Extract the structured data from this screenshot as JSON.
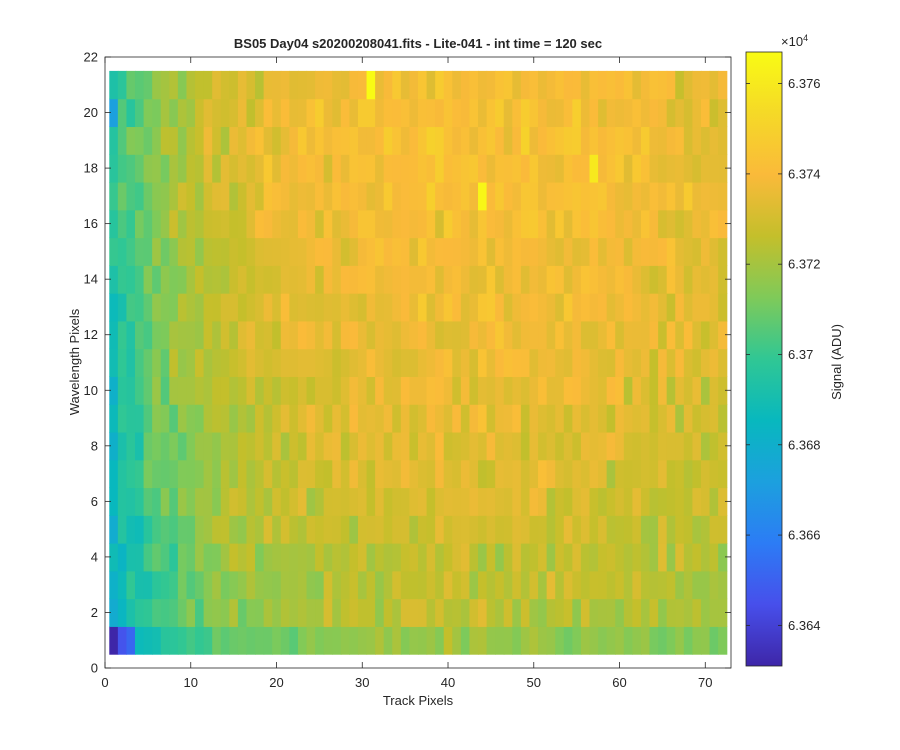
{
  "chart_data": {
    "type": "heatmap",
    "title": "BS05 Day04  s20200208041.fits - Lite-041 - int time = 120 sec",
    "xlabel": "Track Pixels",
    "ylabel": "Wavelength Pixels",
    "xlim": [
      0,
      73
    ],
    "ylim": [
      0,
      22
    ],
    "xticks": [
      0,
      10,
      20,
      30,
      40,
      50,
      60,
      70
    ],
    "yticks": [
      0,
      2,
      4,
      6,
      8,
      10,
      12,
      14,
      16,
      18,
      20,
      22
    ],
    "x_range": [
      1,
      72
    ],
    "y_range": [
      1,
      21
    ],
    "n_cols": 72,
    "n_rows": 21,
    "colormap": "parula",
    "colorbar": {
      "label": "Signal (ADU)",
      "min": 63631,
      "max": 63767,
      "ticks": [
        6.364,
        6.366,
        6.368,
        6.37,
        6.372,
        6.374,
        6.376
      ],
      "tick_labels": [
        "6.364",
        "6.366",
        "6.368",
        "6.37",
        "6.372",
        "6.374",
        "6.376"
      ],
      "exponent_label": "×10",
      "exponent": "4"
    },
    "row_profile": [
      {
        "y": 1,
        "value": 63712
      },
      {
        "y": 2,
        "value": 63720
      },
      {
        "y": 3,
        "value": 63720
      },
      {
        "y": 4,
        "value": 63722
      },
      {
        "y": 5,
        "value": 63724
      },
      {
        "y": 6,
        "value": 63727
      },
      {
        "y": 7,
        "value": 63727
      },
      {
        "y": 8,
        "value": 63728
      },
      {
        "y": 9,
        "value": 63729
      },
      {
        "y": 10,
        "value": 63730
      },
      {
        "y": 11,
        "value": 63731
      },
      {
        "y": 12,
        "value": 63731
      },
      {
        "y": 13,
        "value": 63732
      },
      {
        "y": 14,
        "value": 63733
      },
      {
        "y": 15,
        "value": 63734
      },
      {
        "y": 16,
        "value": 63735
      },
      {
        "y": 17,
        "value": 63736
      },
      {
        "y": 18,
        "value": 63737
      },
      {
        "y": 19,
        "value": 63737
      },
      {
        "y": 20,
        "value": 63736
      },
      {
        "y": 21,
        "value": 63735
      }
    ],
    "column_profile": [
      {
        "x": 1,
        "value": 63688
      },
      {
        "x": 2,
        "value": 63694
      },
      {
        "x": 3,
        "value": 63698
      },
      {
        "x": 4,
        "value": 63701
      },
      {
        "x": 5,
        "value": 63705
      },
      {
        "x": 6,
        "value": 63709
      },
      {
        "x": 8,
        "value": 63714
      },
      {
        "x": 10,
        "value": 63718
      },
      {
        "x": 15,
        "value": 63725
      },
      {
        "x": 20,
        "value": 63730
      },
      {
        "x": 30,
        "value": 63733
      },
      {
        "x": 40,
        "value": 63735
      },
      {
        "x": 50,
        "value": 63735
      },
      {
        "x": 60,
        "value": 63733
      },
      {
        "x": 70,
        "value": 63730
      },
      {
        "x": 72,
        "value": 63728
      }
    ],
    "noise_adu": 7,
    "notable_pixels": [
      {
        "x": 1,
        "y": 1,
        "value": 63631
      },
      {
        "x": 2,
        "y": 1,
        "value": 63646
      },
      {
        "x": 3,
        "y": 1,
        "value": 63652
      },
      {
        "x": 1,
        "y": 20,
        "value": 63672
      },
      {
        "x": 31,
        "y": 21,
        "value": 63767
      },
      {
        "x": 44,
        "y": 17,
        "value": 63765
      },
      {
        "x": 57,
        "y": 18,
        "value": 63760
      }
    ]
  }
}
